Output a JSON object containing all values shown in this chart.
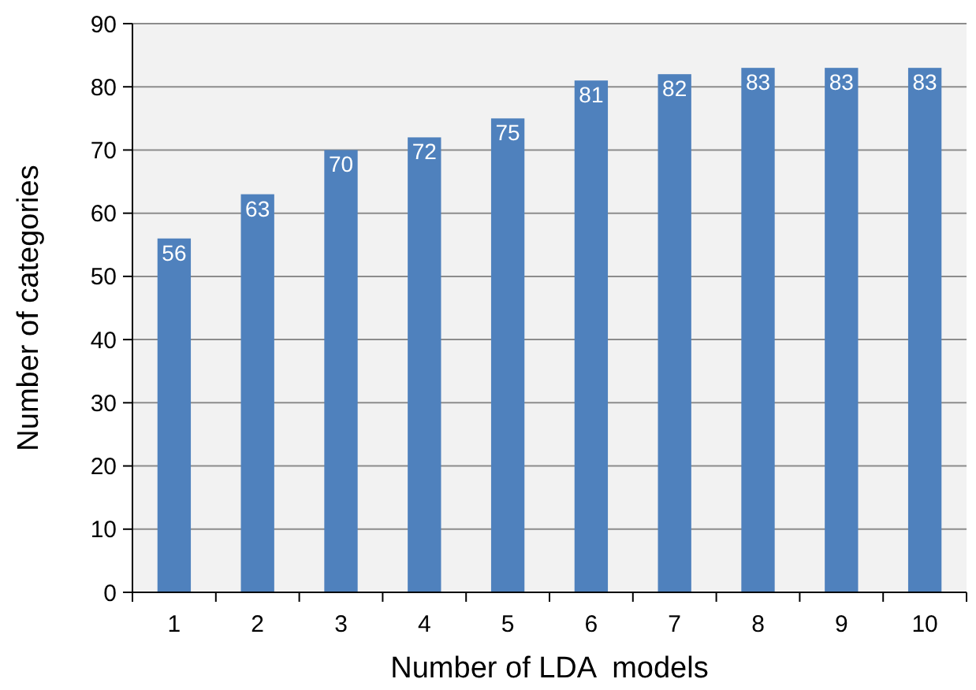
{
  "chart_data": {
    "type": "bar",
    "xlabel": "Number of LDA  models",
    "ylabel": "Number of categories",
    "categories": [
      "1",
      "2",
      "3",
      "4",
      "5",
      "6",
      "7",
      "8",
      "9",
      "10"
    ],
    "values": [
      56,
      63,
      70,
      72,
      75,
      81,
      82,
      83,
      83,
      83
    ],
    "color": "#4f81bd",
    "ylim": [
      0,
      90
    ],
    "yticks": [
      0,
      10,
      20,
      30,
      40,
      50,
      60,
      70,
      80,
      90
    ],
    "grid": "y",
    "data_labels": true
  }
}
